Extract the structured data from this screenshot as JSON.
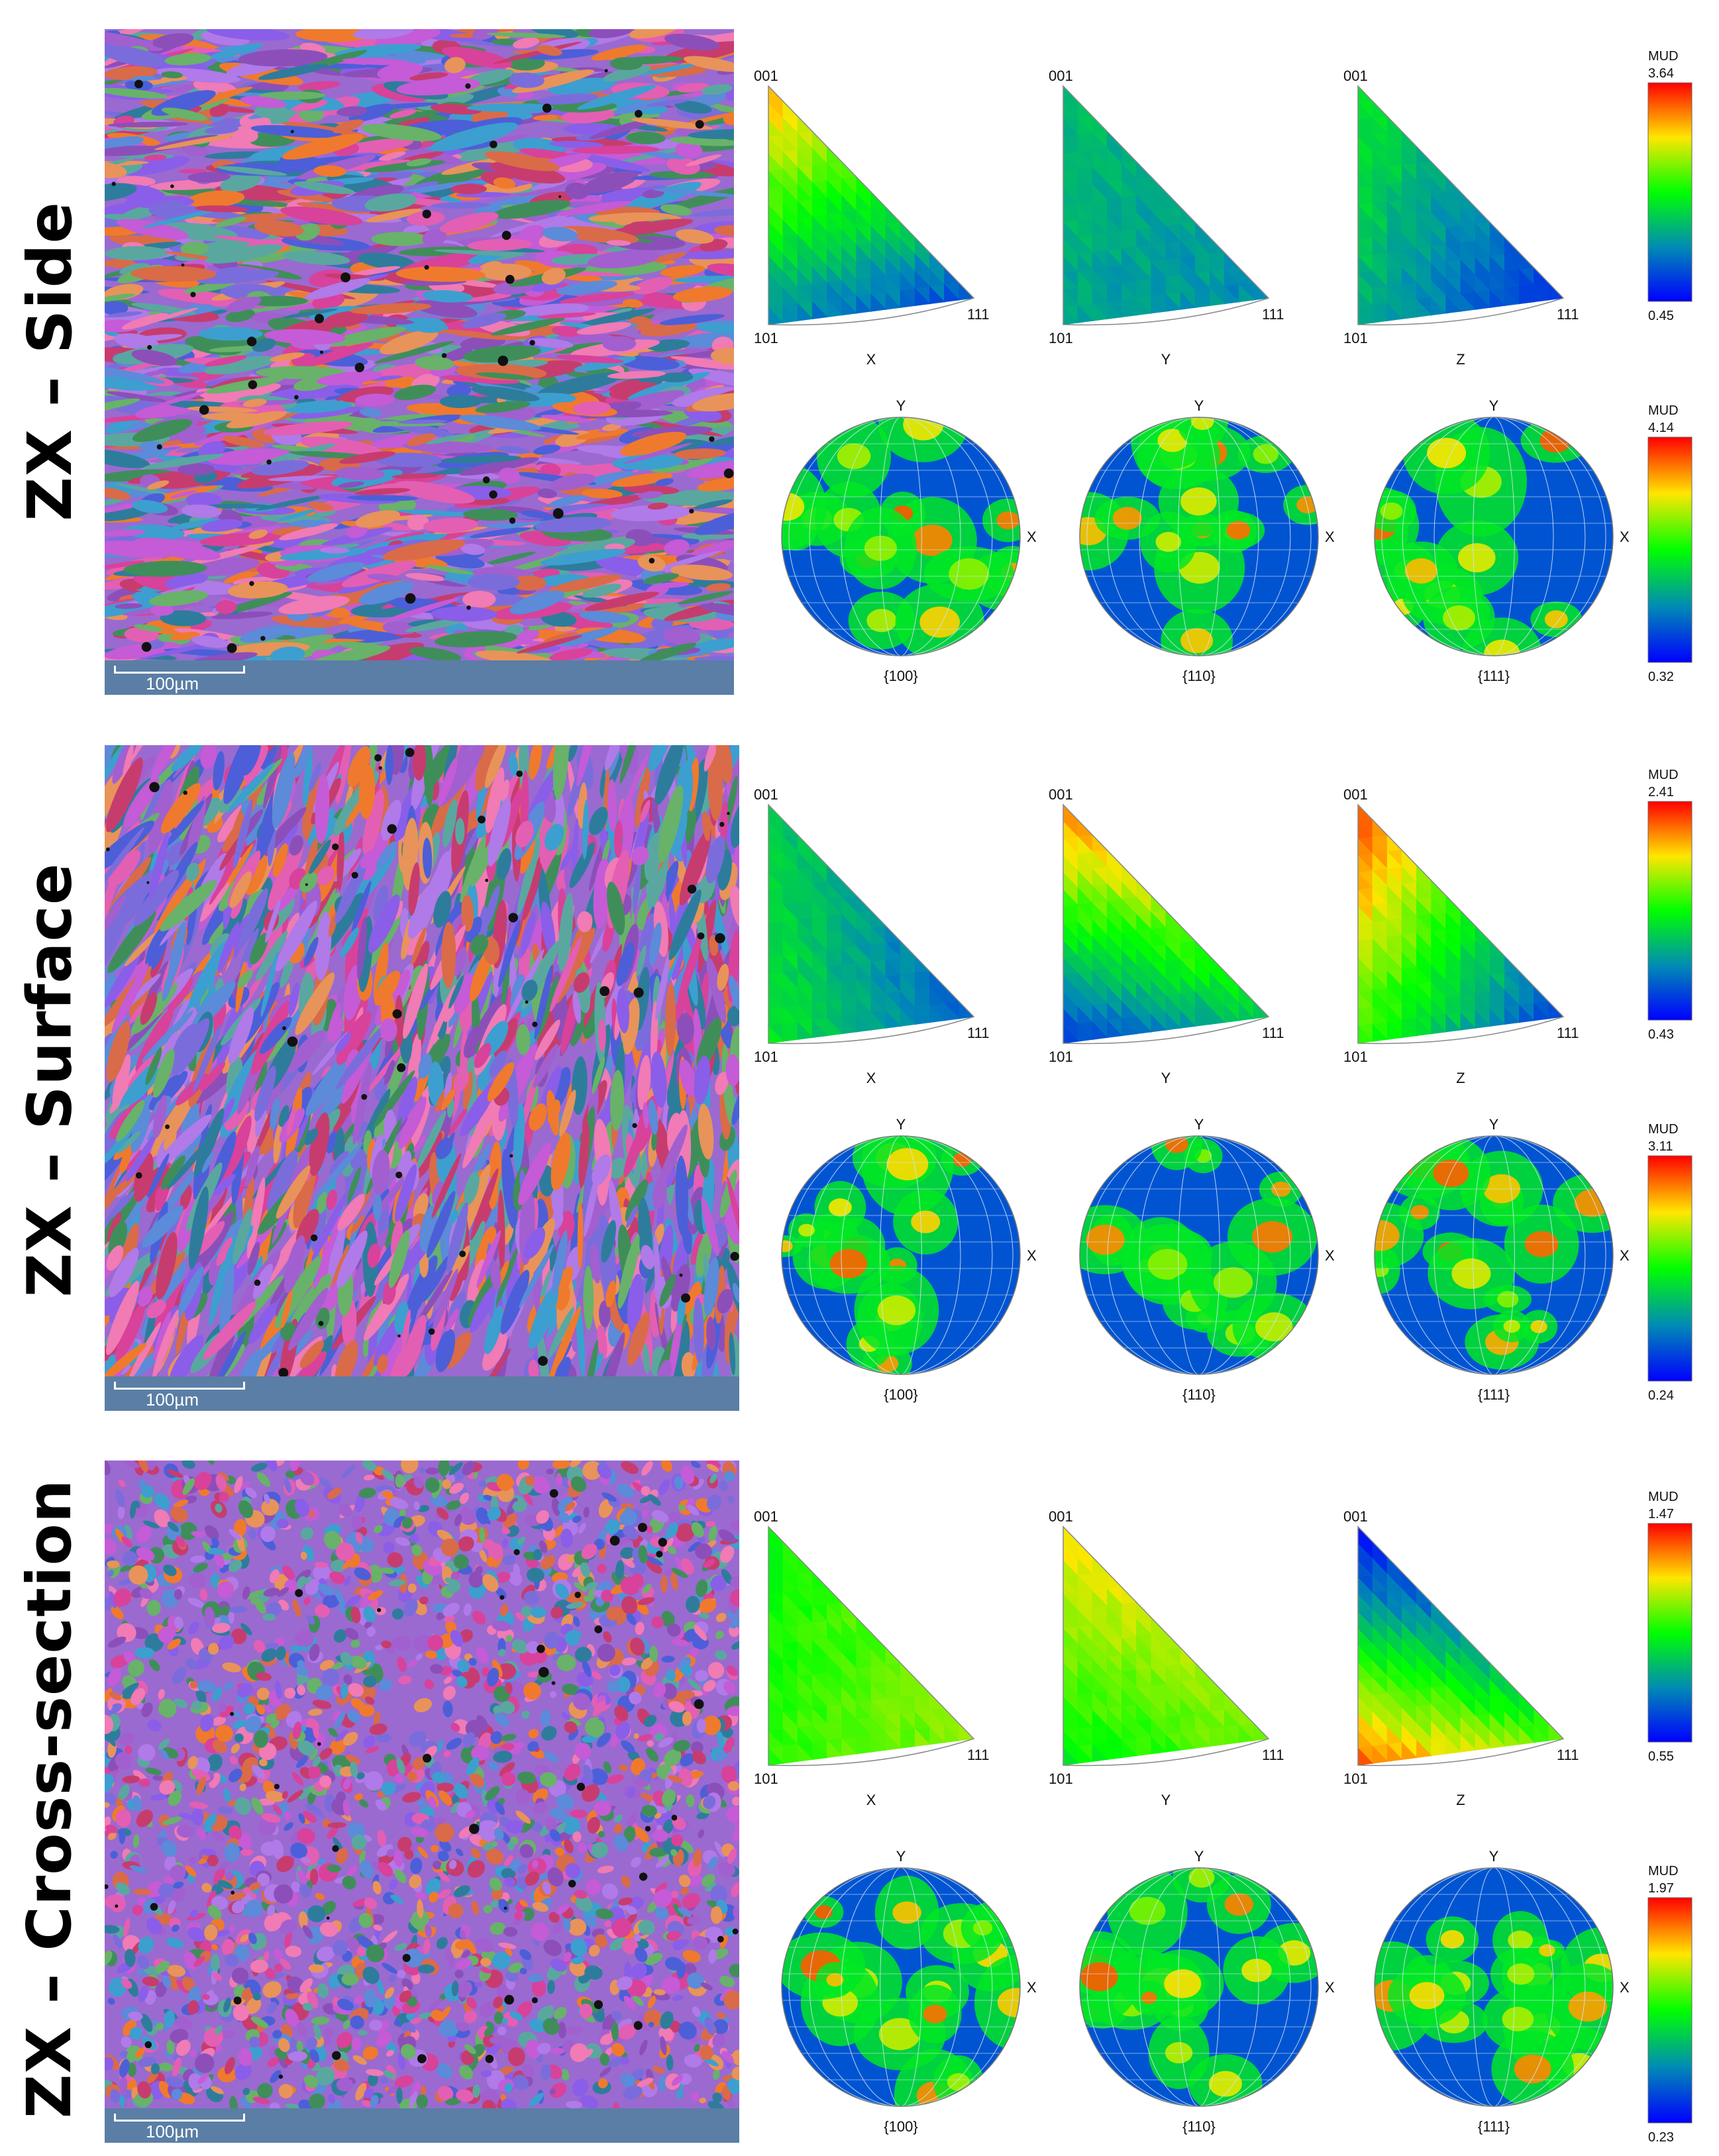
{
  "figure": {
    "rows": [
      {
        "label": "ZX – Side",
        "scale_bar": "100µm",
        "ipf": {
          "corner_001": "001",
          "corner_101": "101",
          "corner_111": "111",
          "directions": [
            "X",
            "Y",
            "Z"
          ]
        },
        "ipf_colorbar": {
          "title": "MUD",
          "max": "3.64",
          "min": "0.45"
        },
        "pf": {
          "axis_top": "Y",
          "axis_right": "X",
          "families": [
            "{100}",
            "{110}",
            "{111}"
          ]
        },
        "pf_colorbar": {
          "title": "MUD",
          "max": "4.14",
          "min": "0.32"
        }
      },
      {
        "label": "ZX – Surface",
        "scale_bar": "100µm",
        "ipf": {
          "corner_001": "001",
          "corner_101": "101",
          "corner_111": "111",
          "directions": [
            "X",
            "Y",
            "Z"
          ]
        },
        "ipf_colorbar": {
          "title": "MUD",
          "max": "2.41",
          "min": "0.43"
        },
        "pf": {
          "axis_top": "Y",
          "axis_right": "X",
          "families": [
            "{100}",
            "{110}",
            "{111}"
          ]
        },
        "pf_colorbar": {
          "title": "MUD",
          "max": "3.11",
          "min": "0.24"
        }
      },
      {
        "label": "ZX – Cross-section",
        "scale_bar": "100µm",
        "ipf": {
          "corner_001": "001",
          "corner_101": "101",
          "corner_111": "111",
          "directions": [
            "X",
            "Y",
            "Z"
          ]
        },
        "ipf_colorbar": {
          "title": "MUD",
          "max": "1.47",
          "min": "0.55"
        },
        "pf": {
          "axis_top": "Y",
          "axis_right": "X",
          "families": [
            "{100}",
            "{110}",
            "{111}"
          ]
        },
        "pf_colorbar": {
          "title": "MUD",
          "max": "1.97",
          "min": "0.23"
        }
      }
    ],
    "colors": {
      "scale_strip": "#5a7ea5",
      "mud_low": "#0000ff",
      "mud_mid": "#00ff00",
      "mud_high": "#ff0000"
    }
  }
}
